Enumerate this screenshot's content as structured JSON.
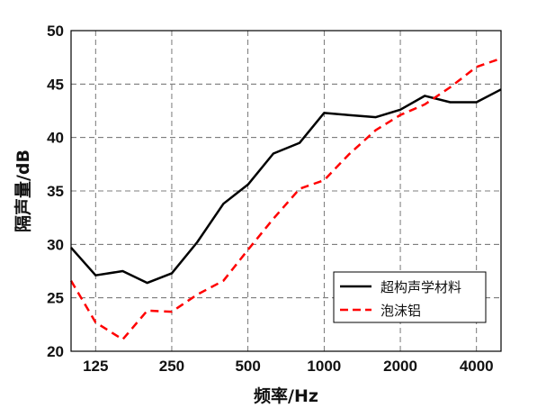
{
  "chart_data": {
    "type": "line",
    "xlabel": "频率/Hz",
    "ylabel": "隔声量/dB",
    "x_scale": "log",
    "xlim": [
      100,
      5000
    ],
    "ylim": [
      20,
      50
    ],
    "x_ticks": [
      125,
      250,
      500,
      1000,
      2000,
      4000
    ],
    "x_tick_labels": [
      "125",
      "250",
      "500",
      "1000",
      "2000",
      "4000"
    ],
    "y_ticks": [
      20,
      25,
      30,
      35,
      40,
      45,
      50
    ],
    "y_tick_labels": [
      "20",
      "25",
      "30",
      "35",
      "40",
      "45",
      "50"
    ],
    "grid": true,
    "legend_position": "lower-right",
    "x": [
      100,
      125,
      160,
      200,
      250,
      315,
      400,
      500,
      630,
      800,
      1000,
      1250,
      1600,
      2000,
      2500,
      3150,
      4000,
      5000
    ],
    "series": [
      {
        "name": "超构声学材料",
        "color": "#000000",
        "style": "solid",
        "values": [
          29.7,
          27.1,
          27.5,
          26.4,
          27.3,
          30.2,
          33.8,
          35.6,
          38.5,
          39.5,
          42.3,
          42.1,
          41.9,
          42.6,
          43.9,
          43.3,
          43.3,
          44.5
        ]
      },
      {
        "name": "泡沫铝",
        "color": "#ff0000",
        "style": "dashed",
        "values": [
          26.6,
          22.7,
          21.1,
          23.8,
          23.7,
          25.3,
          26.6,
          29.5,
          32.4,
          35.2,
          36.0,
          38.4,
          40.7,
          42.1,
          43.1,
          44.7,
          46.6,
          47.4
        ]
      }
    ]
  }
}
